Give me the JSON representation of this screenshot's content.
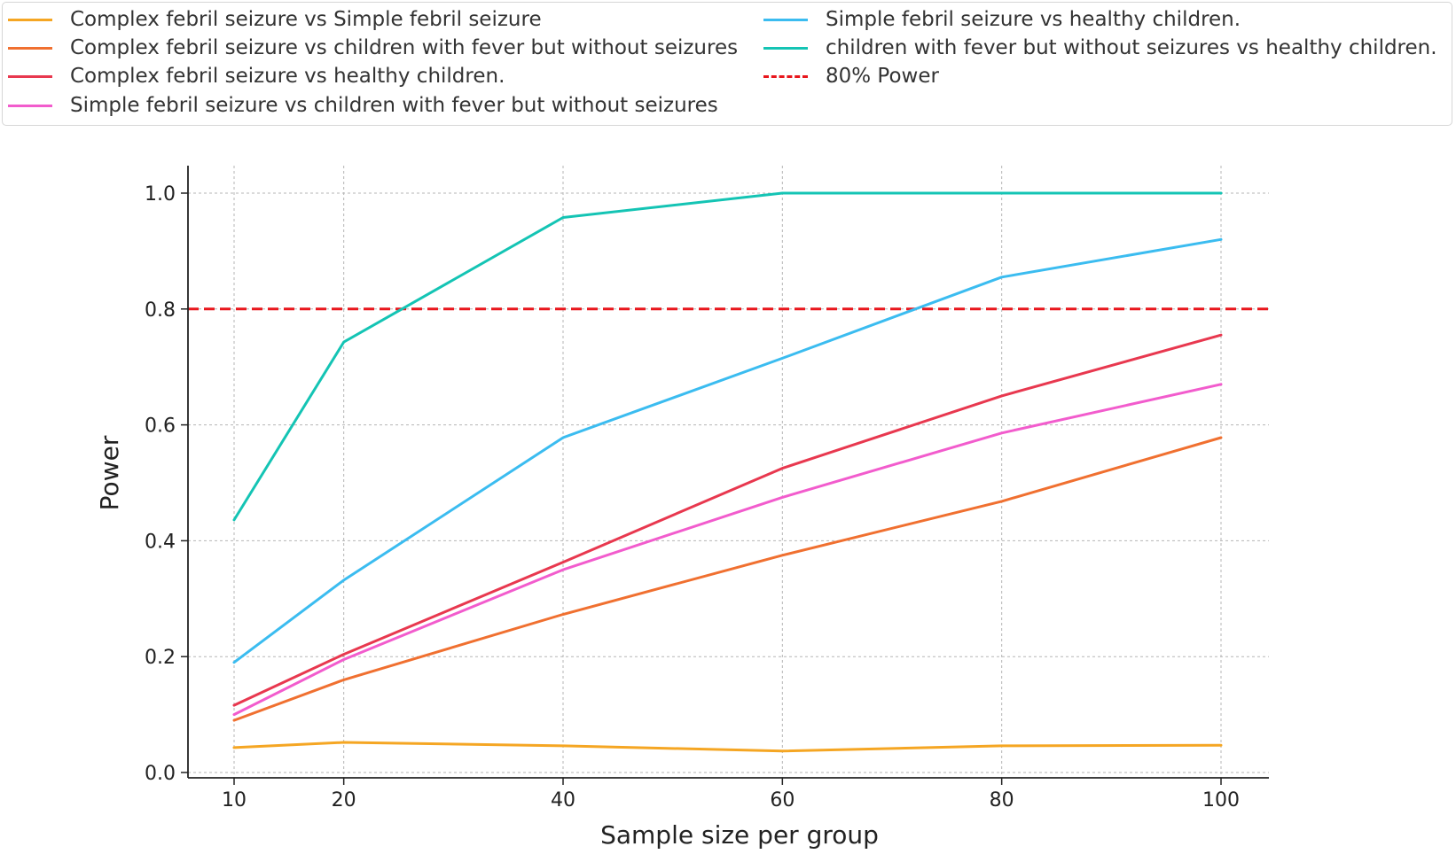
{
  "chart_data": {
    "type": "line",
    "title": "",
    "xlabel": "Sample size per group",
    "ylabel": "Power",
    "xlim": [
      7.5,
      102.5
    ],
    "ylim": [
      0.0,
      1.0
    ],
    "grid": true,
    "legend_placement": "top",
    "x": [
      10,
      20,
      40,
      60,
      80,
      100
    ],
    "x_ticks": [
      "10",
      "20",
      "40",
      "60",
      "80",
      "100"
    ],
    "y_ticks": [
      "0.0",
      "0.2",
      "0.4",
      "0.6",
      "0.8",
      "1.0"
    ],
    "series": [
      {
        "name": "Complex febril seizure vs Simple febril seizure",
        "color": "#f5a623",
        "values": [
          0.043,
          0.052,
          0.046,
          0.037,
          0.046,
          0.047
        ]
      },
      {
        "name": "Complex febril seizure vs children with fever but without seizures",
        "color": "#f07030",
        "values": [
          0.09,
          0.16,
          0.273,
          0.375,
          0.468,
          0.578
        ]
      },
      {
        "name": "Complex febril seizure vs healthy children.",
        "color": "#e8384f",
        "values": [
          0.116,
          0.204,
          0.363,
          0.525,
          0.65,
          0.755
        ]
      },
      {
        "name": "Simple febril seizure vs children with fever but without seizures",
        "color": "#f25ccd",
        "values": [
          0.1,
          0.195,
          0.35,
          0.475,
          0.586,
          0.67
        ]
      },
      {
        "name": "Simple febril seizure vs healthy children.",
        "color": "#3bbcf0",
        "values": [
          0.19,
          0.332,
          0.578,
          0.715,
          0.855,
          0.92
        ]
      },
      {
        "name": "children with fever but without seizures  vs healthy children.",
        "color": "#14c4b4",
        "values": [
          0.436,
          0.743,
          0.958,
          1.0,
          1.0,
          1.0
        ]
      }
    ],
    "reference_lines": [
      {
        "name": "80% Power",
        "y": 0.8,
        "color": "#e8161c",
        "style": "dashed"
      }
    ]
  }
}
